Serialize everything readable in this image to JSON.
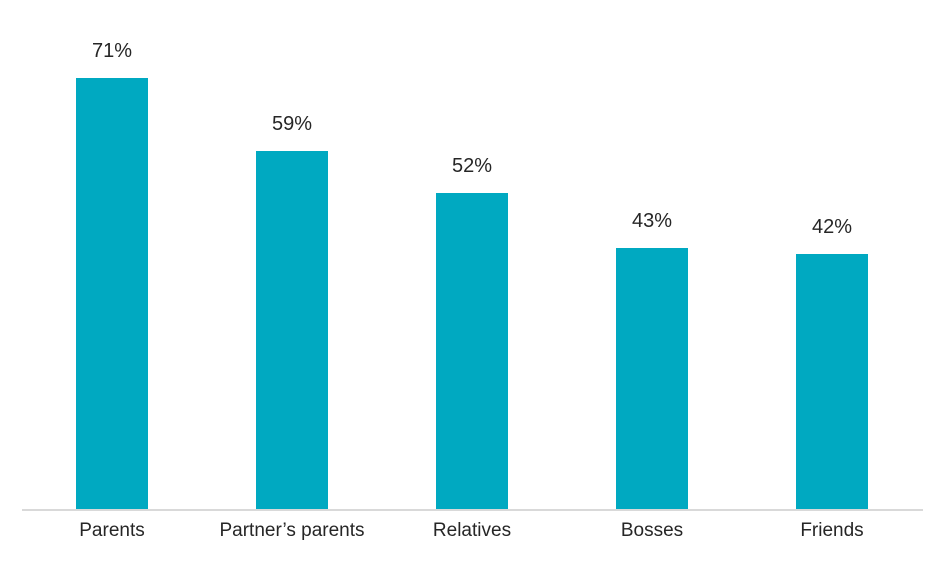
{
  "chart_data": {
    "type": "bar",
    "title": "",
    "categories": [
      "Parents",
      "Partner’s parents",
      "Relatives",
      "Bosses",
      "Friends"
    ],
    "values": [
      71,
      59,
      52,
      43,
      42
    ],
    "value_labels": [
      "71%",
      "59%",
      "52%",
      "43%",
      "42%"
    ],
    "xlabel": "",
    "ylabel": "",
    "ylim": [
      0,
      84
    ],
    "grid": false,
    "legend": false,
    "colors": {
      "bar": "#00A9C1",
      "axis_line": "#D9D9D9",
      "label_text": "#262626",
      "background": "#FFFFFF"
    }
  }
}
